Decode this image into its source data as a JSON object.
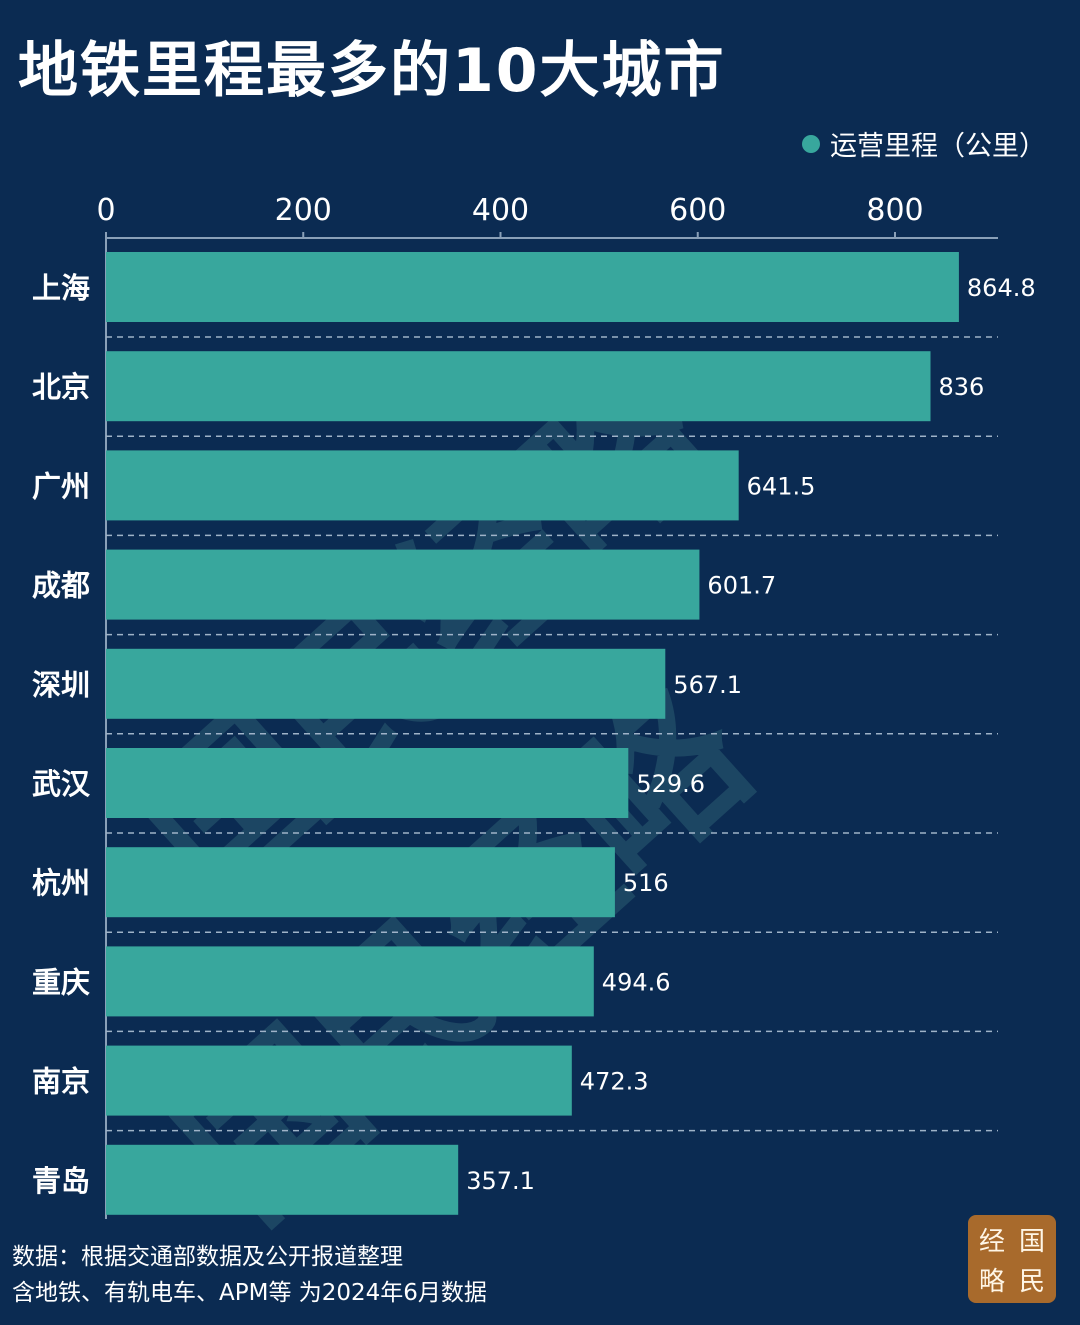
{
  "title": "地铁里程最多的10大城市",
  "legend": {
    "label": "运营里程（公里）",
    "color": "#38a79d"
  },
  "colors": {
    "background": "#0b2b52",
    "bar": "#38a79d",
    "text": "#ffffff",
    "stamp": "#a86a2c"
  },
  "chart_data": {
    "type": "bar",
    "orientation": "horizontal",
    "categories": [
      "上海",
      "北京",
      "广州",
      "成都",
      "深圳",
      "武汉",
      "杭州",
      "重庆",
      "南京",
      "青岛"
    ],
    "series": [
      {
        "name": "运营里程（公里）",
        "values": [
          864.8,
          836,
          641.5,
          601.7,
          567.1,
          529.6,
          516,
          494.6,
          472.3,
          357.1
        ]
      }
    ],
    "value_labels": [
      "864.8",
      "836",
      "641.5",
      "601.7",
      "567.1",
      "529.6",
      "516",
      "494.6",
      "472.3",
      "357.1"
    ],
    "xticks": [
      0,
      200,
      400,
      600,
      800
    ],
    "xlim": [
      0,
      910
    ],
    "xaxis_position": "top",
    "grid": "dashed horizontal separators between bars",
    "legend_position": "top-right"
  },
  "footer": {
    "source": "数据：根据交通部数据及公开报道整理",
    "note": "含地铁、有轨电车、APM等 为2024年6月数据"
  },
  "stamp": {
    "chars": [
      "经",
      "国",
      "略",
      "民"
    ]
  },
  "watermark": {
    "text": "国民经略"
  }
}
